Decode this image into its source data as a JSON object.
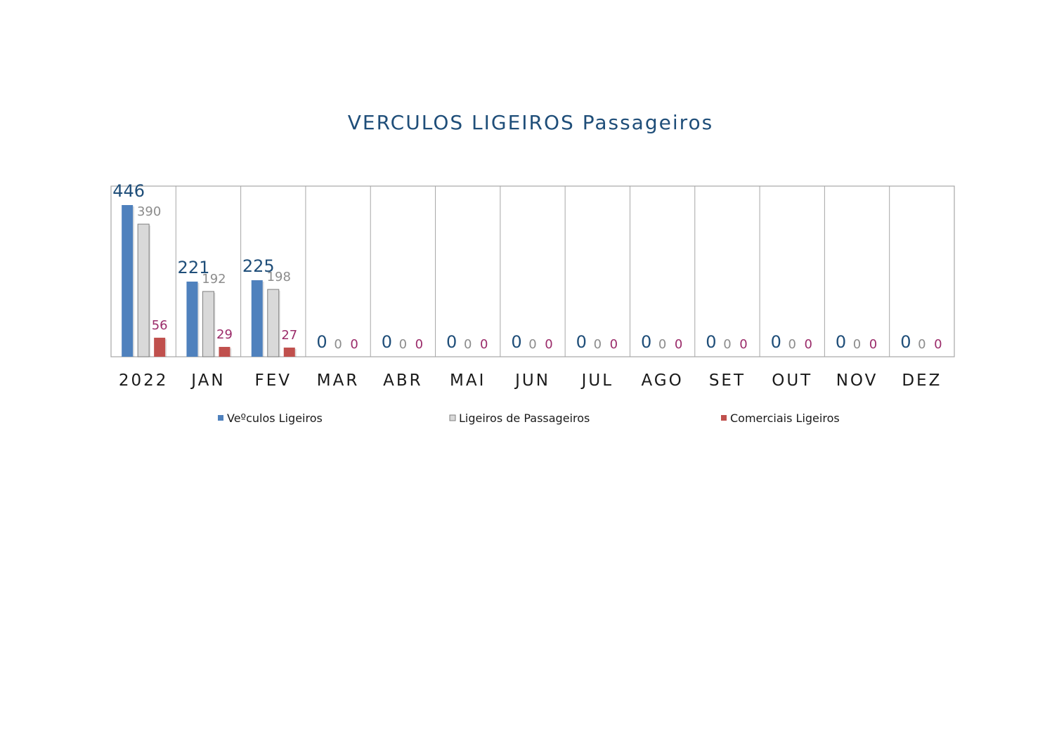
{
  "chart_data": {
    "type": "bar",
    "title": "VERCULOS LIGEIROS  Passageiros",
    "categories": [
      "2022",
      "JAN",
      "FEV",
      "MAR",
      "ABR",
      "MAI",
      "JUN",
      "JUL",
      "AGO",
      "SET",
      "OUT",
      "NOV",
      "DEZ"
    ],
    "series": [
      {
        "name": "Veºculos Ligeiros",
        "values": [
          446,
          221,
          225,
          0,
          0,
          0,
          0,
          0,
          0,
          0,
          0,
          0,
          0
        ],
        "color": "#4f81bd",
        "label_color": "#1f4e79"
      },
      {
        "name": "Ligeiros de Passageiros",
        "values": [
          390,
          192,
          198,
          0,
          0,
          0,
          0,
          0,
          0,
          0,
          0,
          0,
          0
        ],
        "color": "#d9d9d9",
        "label_color": "#8c8c8c"
      },
      {
        "name": "Comerciais Ligeiros",
        "values": [
          56,
          29,
          27,
          0,
          0,
          0,
          0,
          0,
          0,
          0,
          0,
          0,
          0
        ],
        "color": "#c0504d",
        "label_color": "#9b2c6a"
      }
    ],
    "ylim": [
      0,
      446
    ],
    "grid": "vertical category separators",
    "legend": "bottom"
  }
}
